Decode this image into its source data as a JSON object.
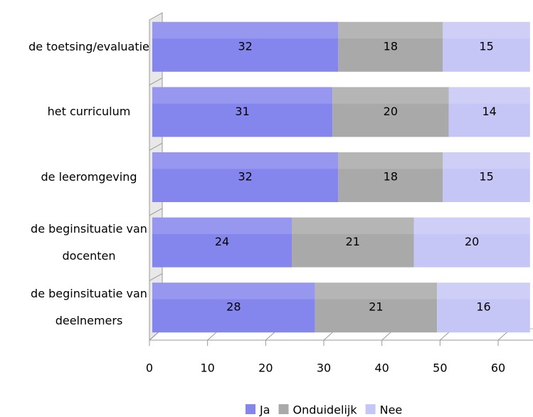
{
  "chart_data": {
    "type": "stacked-bar-horizontal",
    "categories": [
      "de toetsing/evaluatie",
      "het curriculum",
      "de leeromgeving",
      "de beginsituatie van docenten",
      "de beginsituatie van deelnemers"
    ],
    "series": [
      {
        "name": "Ja",
        "color": "#8585ee",
        "values": [
          32,
          31,
          32,
          24,
          28
        ]
      },
      {
        "name": "Onduidelijk",
        "color": "#a9a9a9",
        "values": [
          18,
          20,
          18,
          21,
          21
        ]
      },
      {
        "name": "Nee",
        "color": "#c6c6f6",
        "values": [
          15,
          14,
          15,
          20,
          16
        ]
      }
    ],
    "xlim": [
      0,
      66
    ],
    "xticks": [
      0,
      10,
      20,
      30,
      40,
      50,
      60
    ],
    "legend": "bottom"
  }
}
